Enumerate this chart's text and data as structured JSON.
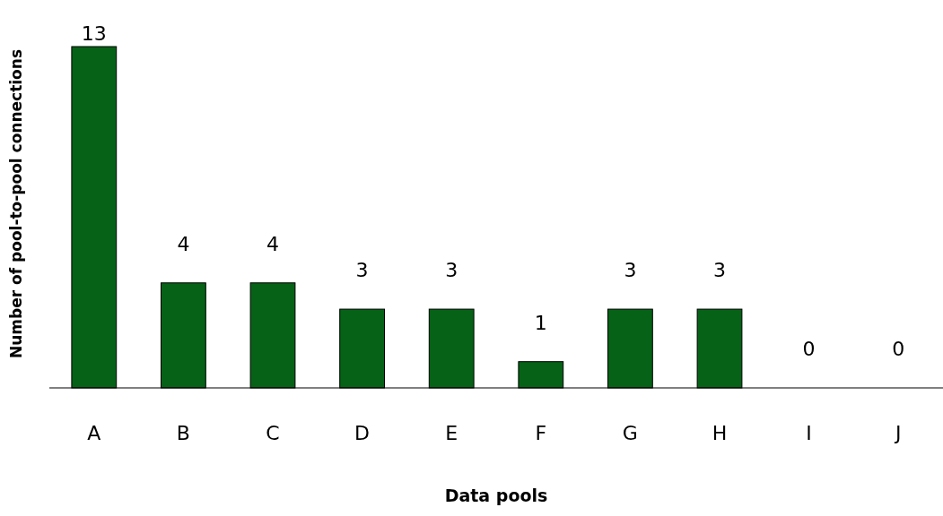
{
  "chart_data": {
    "type": "bar",
    "xlabel": "Data pools",
    "ylabel": "Number of pool-to-pool connections",
    "categories": [
      "A",
      "B",
      "C",
      "D",
      "E",
      "F",
      "G",
      "H",
      "I",
      "J"
    ],
    "values": [
      13,
      4,
      4,
      3,
      3,
      1,
      3,
      3,
      0,
      0
    ],
    "color": "#056216",
    "data_labels": true
  }
}
